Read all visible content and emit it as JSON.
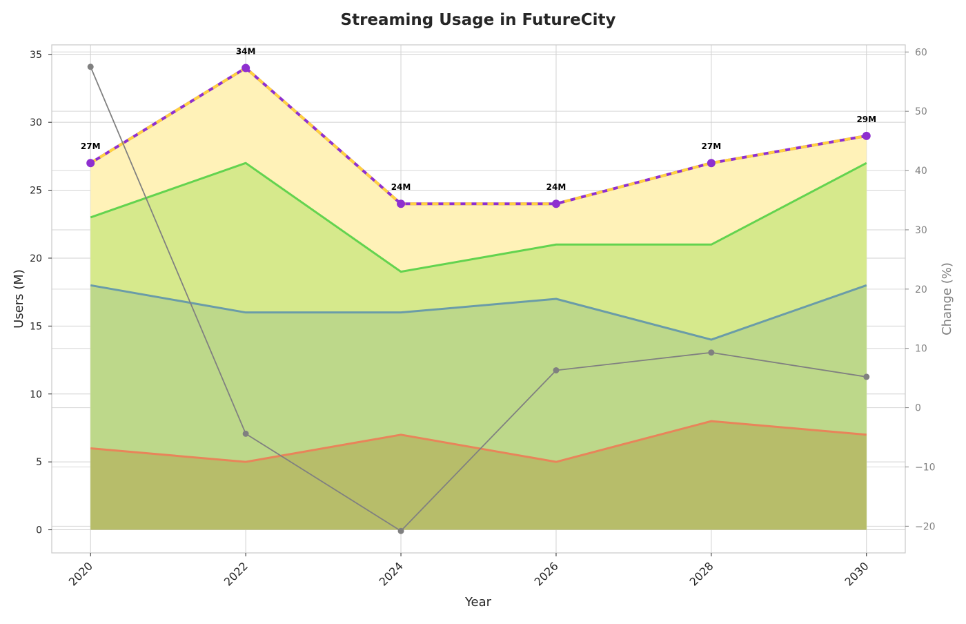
{
  "chart_data": {
    "type": "area",
    "title": "Streaming Usage in FutureCity",
    "xlabel": "Year",
    "ylabel": "Users (M)",
    "ylabel_right": "Change (%)",
    "x": [
      2020,
      2022,
      2024,
      2026,
      2028,
      2030
    ],
    "x_ticks": [
      "2020",
      "2022",
      "2024",
      "2026",
      "2028",
      "2030"
    ],
    "ylim": [
      -1.7,
      35.7
    ],
    "y_ticks": [
      0,
      5,
      10,
      15,
      20,
      25,
      30,
      35
    ],
    "ylim_right": [
      -24.5,
      61.2
    ],
    "y_ticks_right": [
      -20,
      -10,
      0,
      10,
      20,
      30,
      40,
      50,
      60
    ],
    "y_tick_labels_right": [
      "−20",
      "−10",
      "0",
      "10",
      "20",
      "30",
      "40",
      "50",
      "60"
    ],
    "stacked_series": [
      {
        "values": [
          6,
          5,
          7,
          5,
          8,
          7
        ],
        "line_color": "#e8845a",
        "fill_color": "#b7bd6a"
      },
      {
        "values": [
          18,
          16,
          16,
          17,
          14,
          18
        ],
        "line_color": "#6a9ca8",
        "fill_color": "#bdd88a"
      },
      {
        "values": [
          23,
          27,
          19,
          21,
          21,
          27
        ],
        "line_color": "#63d34f",
        "fill_color": "#d6e98c"
      },
      {
        "values": [
          27,
          34,
          24,
          24,
          27,
          29
        ],
        "line_color": "#ffd23f",
        "fill_color": "#fff2b8",
        "marker_color": "#8e2fcf"
      }
    ],
    "total_labels": [
      "27M",
      "34M",
      "24M",
      "24M",
      "27M",
      "29M"
    ],
    "change_series": {
      "values": [
        57.5,
        -4.4,
        -20.8,
        6.3,
        9.3,
        5.2
      ],
      "color": "#808080",
      "axis": "right"
    },
    "grid": true,
    "legend": "none"
  }
}
